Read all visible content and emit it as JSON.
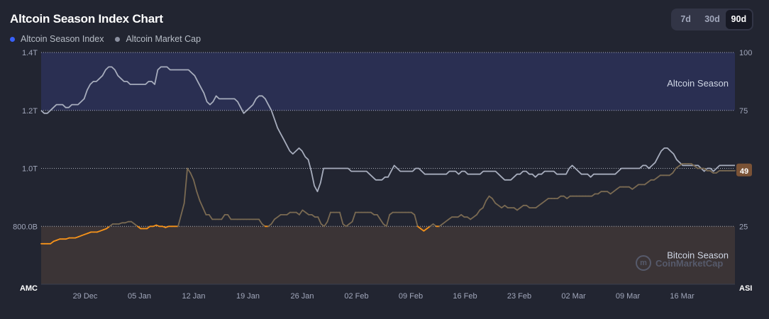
{
  "title": "Altcoin Season Index Chart",
  "range_tabs": [
    {
      "label": "7d",
      "active": false
    },
    {
      "label": "30d",
      "active": false
    },
    {
      "label": "90d",
      "active": true
    }
  ],
  "legend": [
    {
      "label": "Altcoin Season Index",
      "color": "#3861fb"
    },
    {
      "label": "Altcoin Market Cap",
      "color": "#8b90a0"
    }
  ],
  "watermark": "CoinMarketCap",
  "colors": {
    "background": "#222531",
    "altcoin_zone": "#2a2f52",
    "bitcoin_zone": "#3b3436",
    "index_bitcoin": "#f7931a",
    "index_neutral": "#7a6a52",
    "index_altcoin": "#3861fb",
    "market_cap_line": "#a7adbd",
    "current_badge": "#7b5336"
  },
  "chart_data": {
    "type": "line",
    "title": "Altcoin Season Index Chart",
    "x_ticks": [
      "29 Dec",
      "05 Jan",
      "12 Jan",
      "19 Jan",
      "26 Jan",
      "02 Feb",
      "09 Feb",
      "16 Feb",
      "23 Feb",
      "02 Mar",
      "09 Mar",
      "16 Mar"
    ],
    "x_range": [
      "22 Dec",
      "25 Mar"
    ],
    "left_axis": {
      "label": "AMC",
      "ticks": [
        "1.4T",
        "1.2T",
        "1.0T",
        "800.0B"
      ],
      "range": [
        600000000000,
        1400000000000
      ]
    },
    "right_axis": {
      "label": "ASI",
      "ticks": [
        "100",
        "75",
        "50",
        "25"
      ],
      "range": [
        0,
        100
      ]
    },
    "zones": [
      {
        "label": "Altcoin Season",
        "from": 75,
        "to": 100
      },
      {
        "label": "Bitcoin Season",
        "from": 0,
        "to": 25
      }
    ],
    "grid": true,
    "current_value_label": "49",
    "series": [
      {
        "name": "Altcoin Season Index",
        "axis": "right",
        "values": [
          17.5,
          17.5,
          17.5,
          17.5,
          18.5,
          19,
          19.5,
          19.5,
          19.5,
          20,
          20,
          20,
          20.5,
          21,
          21.5,
          22,
          22.5,
          22.5,
          22.5,
          23,
          23.5,
          24,
          25,
          26,
          26,
          26,
          26.5,
          26.5,
          27,
          27,
          26,
          25,
          24,
          24,
          24,
          25,
          25,
          25.5,
          25,
          25,
          24.5,
          25,
          25,
          25,
          25,
          30,
          35,
          50,
          48,
          45,
          40,
          36,
          33,
          30,
          30,
          28,
          28,
          28,
          28,
          30,
          30,
          28,
          28,
          28,
          28,
          28,
          28,
          28,
          28,
          28,
          28,
          26,
          25,
          25,
          26,
          28,
          29,
          30,
          30,
          30,
          31,
          31,
          31,
          30,
          32,
          31,
          30,
          30,
          29,
          29,
          26,
          25,
          27,
          31,
          31,
          31,
          31,
          26,
          25,
          26,
          27,
          31,
          31,
          31,
          31,
          31,
          31,
          30,
          30,
          28,
          26,
          25,
          30,
          31,
          31,
          31,
          31,
          31,
          31,
          31,
          30,
          25,
          24,
          23,
          24,
          25,
          26,
          25,
          25,
          26,
          27,
          28,
          29,
          29,
          29,
          30,
          29,
          29,
          28,
          29,
          30,
          32,
          33,
          36,
          38,
          37,
          35,
          34,
          33,
          34,
          33,
          33,
          33,
          32,
          33,
          34,
          34,
          33,
          33,
          33,
          34,
          35,
          36,
          37,
          37,
          37,
          37,
          38,
          38,
          37,
          38,
          38,
          38,
          38,
          38,
          38,
          38,
          38,
          39,
          39,
          40,
          40,
          40,
          39,
          40,
          41,
          42,
          42,
          42,
          42,
          41,
          42,
          43,
          43,
          43,
          44,
          45,
          45,
          46,
          47,
          47,
          47,
          47,
          48,
          50,
          51,
          52,
          52,
          52,
          52,
          51,
          50,
          50,
          50,
          49,
          49,
          48,
          48,
          49,
          49,
          49,
          49,
          49,
          49
        ]
      },
      {
        "name": "Altcoin Market Cap",
        "axis": "left",
        "values": [
          1.2,
          1.19,
          1.19,
          1.2,
          1.21,
          1.22,
          1.22,
          1.22,
          1.21,
          1.21,
          1.22,
          1.22,
          1.22,
          1.23,
          1.24,
          1.27,
          1.29,
          1.3,
          1.3,
          1.31,
          1.32,
          1.34,
          1.35,
          1.35,
          1.34,
          1.32,
          1.31,
          1.3,
          1.3,
          1.29,
          1.29,
          1.29,
          1.29,
          1.29,
          1.29,
          1.3,
          1.3,
          1.29,
          1.34,
          1.35,
          1.35,
          1.35,
          1.34,
          1.34,
          1.34,
          1.34,
          1.34,
          1.34,
          1.34,
          1.33,
          1.32,
          1.3,
          1.28,
          1.26,
          1.23,
          1.22,
          1.23,
          1.25,
          1.24,
          1.24,
          1.24,
          1.24,
          1.24,
          1.24,
          1.23,
          1.21,
          1.19,
          1.2,
          1.21,
          1.22,
          1.24,
          1.25,
          1.25,
          1.24,
          1.22,
          1.2,
          1.17,
          1.14,
          1.12,
          1.1,
          1.08,
          1.06,
          1.05,
          1.06,
          1.07,
          1.06,
          1.04,
          1.03,
          0.99,
          0.94,
          0.92,
          0.95,
          1.0,
          1.0,
          1.0,
          1.0,
          1.0,
          1.0,
          1.0,
          1.0,
          1.0,
          0.99,
          0.99,
          0.99,
          0.99,
          0.99,
          0.99,
          0.98,
          0.97,
          0.96,
          0.96,
          0.96,
          0.97,
          0.97,
          0.99,
          1.01,
          1.0,
          0.99,
          0.99,
          0.99,
          0.99,
          0.99,
          1.0,
          1.0,
          0.99,
          0.98,
          0.98,
          0.98,
          0.98,
          0.98,
          0.98,
          0.98,
          0.98,
          0.99,
          0.99,
          0.99,
          0.98,
          0.99,
          0.99,
          0.98,
          0.98,
          0.98,
          0.98,
          0.98,
          0.99,
          0.99,
          0.99,
          0.99,
          0.99,
          0.98,
          0.97,
          0.96,
          0.96,
          0.96,
          0.97,
          0.98,
          0.98,
          0.99,
          0.99,
          0.98,
          0.98,
          0.97,
          0.98,
          0.98,
          0.99,
          0.99,
          0.99,
          0.99,
          0.98,
          0.98,
          0.98,
          0.98,
          1.0,
          1.01,
          1.0,
          0.99,
          0.98,
          0.98,
          0.98,
          0.97,
          0.98,
          0.98,
          0.98,
          0.98,
          0.98,
          0.98,
          0.98,
          0.98,
          0.99,
          1.0,
          1.0,
          1.0,
          1.0,
          1.0,
          1.0,
          1.0,
          1.01,
          1.01,
          1.0,
          1.01,
          1.02,
          1.04,
          1.06,
          1.07,
          1.07,
          1.06,
          1.05,
          1.03,
          1.02,
          1.01,
          1.01,
          1.01,
          1.01,
          1.01,
          1.01,
          1.0,
          0.99,
          1.0,
          1.0,
          0.99,
          1.0,
          1.01,
          1.01,
          1.01,
          1.01,
          1.01,
          1.01
        ]
      }
    ]
  }
}
